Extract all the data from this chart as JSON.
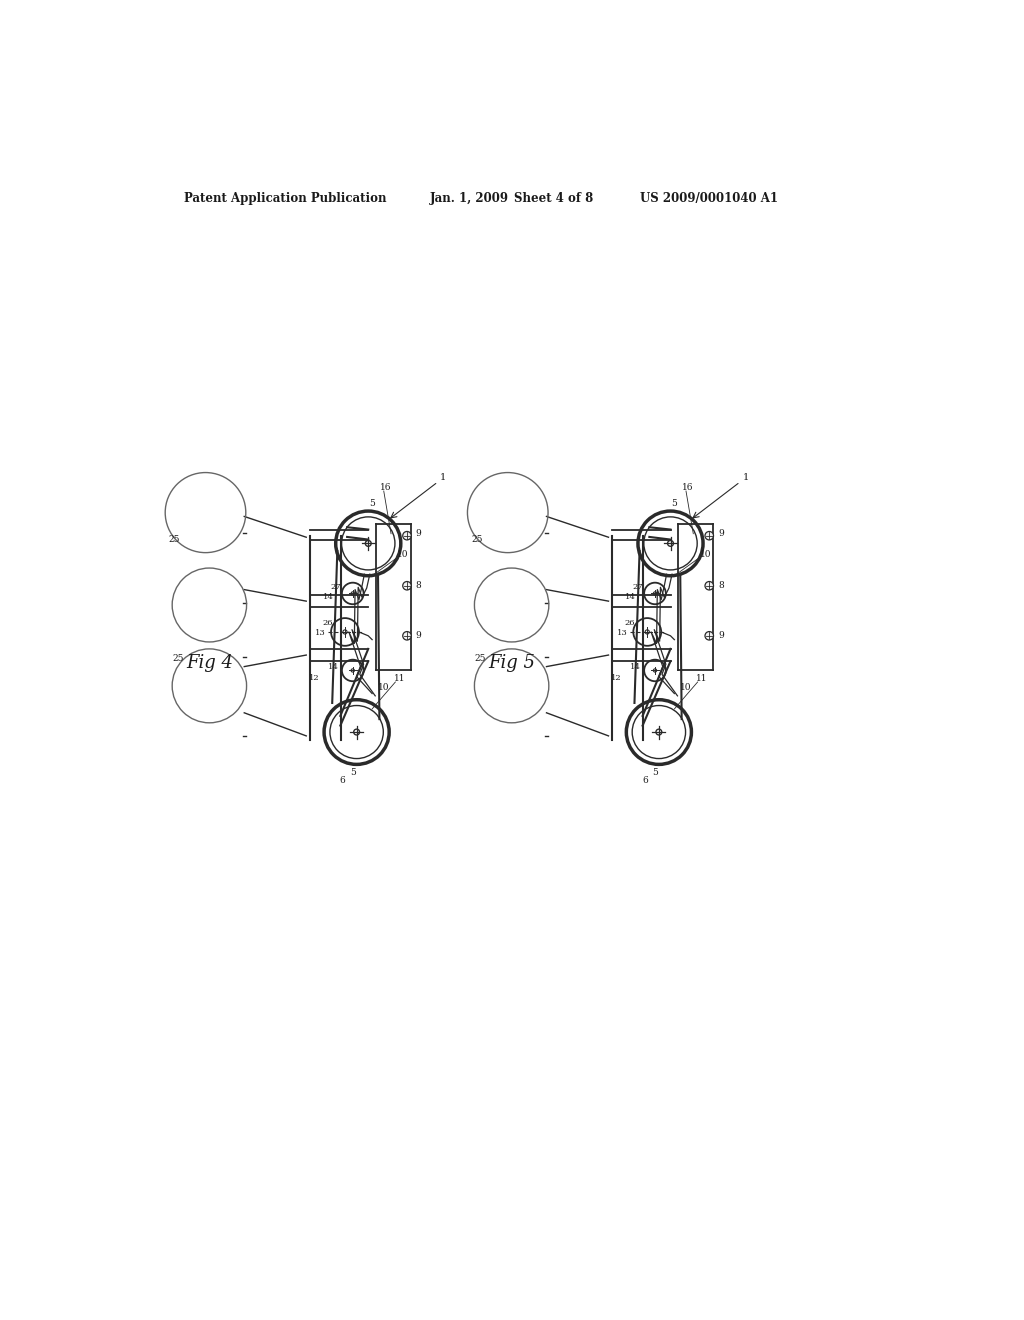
{
  "bg_color": "#ffffff",
  "header_line1": "Patent Application Publication",
  "header_date": "Jan. 1, 2009",
  "header_sheet": "Sheet 4 of 8",
  "header_patent": "US 2009/0001040 A1",
  "fig4_label": "Fig 4",
  "fig5_label": "Fig 5",
  "lc": "#2a2a2a",
  "tc": "#1a1a1a",
  "lc_light": "#555555"
}
